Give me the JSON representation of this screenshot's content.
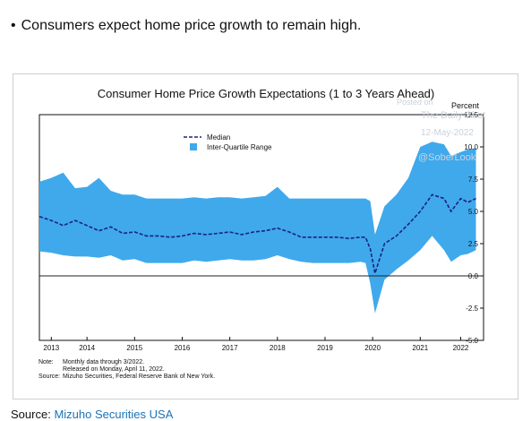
{
  "headline": "Consumers expect home price growth to remain high.",
  "source_label": "Source:",
  "source_name": "Mizuho Securities USA",
  "watermark": {
    "line1": "Posted on",
    "line2": "The Daily Shot",
    "line3": "12-May-2022",
    "line4": "@SoberLook"
  },
  "notes": {
    "note_label": "Note:",
    "note_line1": "Monthly data through 3/2022.",
    "note_line2": "Released on Monday, April 11, 2022.",
    "source_label": "Source:",
    "source_text": "Mizuho Securities, Federal Reserve Bank of New York."
  },
  "colors": {
    "iqr": "#3fa9ec",
    "median": "#1a237e",
    "zero_line": "#222222"
  },
  "chart_data": {
    "type": "area",
    "title": "Consumer Home Price Growth Expectations (1 to 3 Years Ahead)",
    "y_unit_label": "Percent",
    "xlabel": "",
    "ylabel": "",
    "ylim": [
      -5.0,
      12.5
    ],
    "xlim": [
      2013.0,
      2022.33
    ],
    "y_ticks": [
      -5.0,
      -2.5,
      0.0,
      2.5,
      5.0,
      7.5,
      10.0,
      12.5
    ],
    "y_tick_labels": [
      "-5.0",
      "-2.5",
      "0.0",
      "2.5",
      "5.0",
      "7.5",
      "10.0",
      "12.5"
    ],
    "x_ticks": [
      2013.25,
      2014.0,
      2015.0,
      2016.0,
      2017.0,
      2018.0,
      2019.0,
      2020.0,
      2021.0,
      2021.85
    ],
    "x_tick_labels": [
      "2013",
      "2014",
      "2015",
      "2016",
      "2017",
      "2018",
      "2019",
      "2020",
      "2021",
      "2022"
    ],
    "legend_position": "top-left",
    "grid": false,
    "series": [
      {
        "name": "Median",
        "x": [
          2013.0,
          2013.25,
          2013.5,
          2013.75,
          2014.0,
          2014.25,
          2014.5,
          2014.75,
          2015.0,
          2015.25,
          2015.5,
          2015.75,
          2016.0,
          2016.25,
          2016.5,
          2016.75,
          2017.0,
          2017.25,
          2017.5,
          2017.75,
          2018.0,
          2018.25,
          2018.5,
          2018.75,
          2019.0,
          2019.25,
          2019.5,
          2019.75,
          2019.85,
          2019.95,
          2020.05,
          2020.25,
          2020.5,
          2020.75,
          2021.0,
          2021.25,
          2021.5,
          2021.65,
          2021.85,
          2022.0,
          2022.17
        ],
        "values": [
          4.6,
          4.3,
          3.9,
          4.3,
          3.9,
          3.5,
          3.8,
          3.3,
          3.4,
          3.1,
          3.1,
          3.0,
          3.1,
          3.3,
          3.2,
          3.3,
          3.4,
          3.2,
          3.4,
          3.5,
          3.7,
          3.4,
          3.0,
          3.0,
          3.0,
          3.0,
          2.9,
          3.0,
          3.0,
          2.1,
          0.2,
          2.5,
          3.1,
          4.0,
          5.0,
          6.3,
          6.0,
          5.0,
          6.0,
          5.7,
          6.0
        ]
      },
      {
        "name": "Inter-Quartile Range",
        "x": [
          2013.0,
          2013.25,
          2013.5,
          2013.75,
          2014.0,
          2014.25,
          2014.5,
          2014.75,
          2015.0,
          2015.25,
          2015.5,
          2015.75,
          2016.0,
          2016.25,
          2016.5,
          2016.75,
          2017.0,
          2017.25,
          2017.5,
          2017.75,
          2018.0,
          2018.25,
          2018.5,
          2018.75,
          2019.0,
          2019.25,
          2019.5,
          2019.75,
          2019.85,
          2019.95,
          2020.05,
          2020.25,
          2020.5,
          2020.75,
          2021.0,
          2021.25,
          2021.5,
          2021.65,
          2021.85,
          2022.0,
          2022.17
        ],
        "low": [
          1.9,
          1.8,
          1.6,
          1.5,
          1.5,
          1.4,
          1.6,
          1.2,
          1.3,
          1.0,
          1.0,
          1.0,
          1.0,
          1.2,
          1.1,
          1.2,
          1.3,
          1.2,
          1.2,
          1.3,
          1.6,
          1.3,
          1.1,
          1.0,
          1.0,
          1.0,
          1.0,
          1.1,
          1.0,
          -0.6,
          -2.9,
          -0.3,
          0.5,
          1.2,
          2.0,
          3.1,
          2.0,
          1.1,
          1.6,
          1.7,
          2.0
        ],
        "high": [
          7.3,
          7.6,
          8.0,
          6.8,
          6.9,
          7.6,
          6.6,
          6.3,
          6.3,
          6.0,
          6.0,
          6.0,
          6.0,
          6.1,
          6.0,
          6.1,
          6.1,
          6.0,
          6.1,
          6.2,
          6.9,
          6.0,
          6.0,
          6.0,
          6.0,
          6.0,
          6.0,
          6.0,
          6.0,
          5.8,
          3.2,
          5.4,
          6.3,
          7.6,
          10.0,
          10.4,
          10.2,
          9.3,
          9.6,
          9.8,
          9.9
        ]
      }
    ]
  }
}
